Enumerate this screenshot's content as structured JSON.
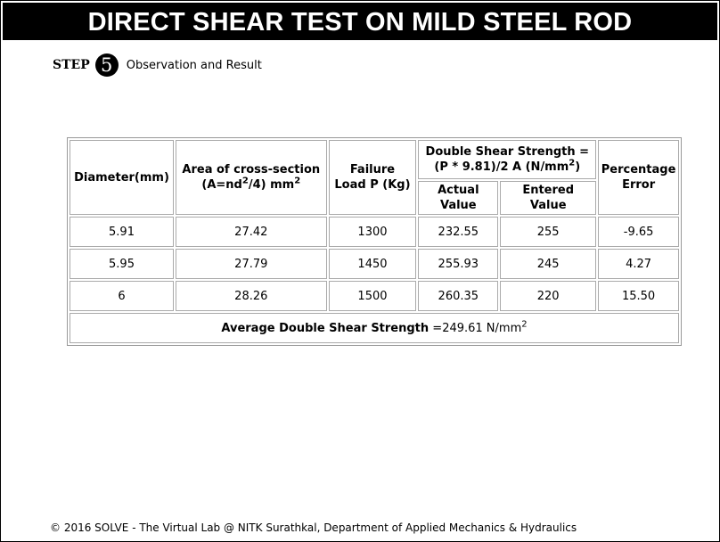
{
  "header": {
    "title": "DIRECT SHEAR TEST ON MILD STEEL ROD"
  },
  "step": {
    "label": "STEP",
    "number": "5",
    "text": "Observation and Result"
  },
  "table": {
    "headers": {
      "diameter": "Diameter(mm)",
      "area_line1": "Area of cross-section",
      "area_line2_pre": "(A=nd",
      "area_line2_sup": "2",
      "area_line2_mid": "/4) mm",
      "area_line2_sup2": "2",
      "load_line1": "Failure",
      "load_line2": "Load P (Kg)",
      "strength_line1": "Double Shear Strength =",
      "strength_line2_pre": "(P * 9.81)/2 A (N/mm",
      "strength_line2_sup": "2",
      "strength_line2_post": ")",
      "actual_line1": "Actual",
      "actual_line2": "Value",
      "entered_line1": "Entered",
      "entered_line2": "Value",
      "error_line1": "Percentage",
      "error_line2": "Error"
    },
    "rows": [
      {
        "diameter": "5.91",
        "area": "27.42",
        "load": "1300",
        "actual": "232.55",
        "entered": "255",
        "error": "-9.65"
      },
      {
        "diameter": "5.95",
        "area": "27.79",
        "load": "1450",
        "actual": "255.93",
        "entered": "245",
        "error": "4.27"
      },
      {
        "diameter": "6",
        "area": "28.26",
        "load": "1500",
        "actual": "260.35",
        "entered": "220",
        "error": "15.50"
      }
    ],
    "average": {
      "label": "Average Double Shear Strength",
      "value": "=249.61 N/mm",
      "sup": "2"
    }
  },
  "footer": {
    "text": "© 2016 SOLVE - The Virtual Lab @ NITK Surathkal, Department of Applied Mechanics & Hydraulics"
  }
}
